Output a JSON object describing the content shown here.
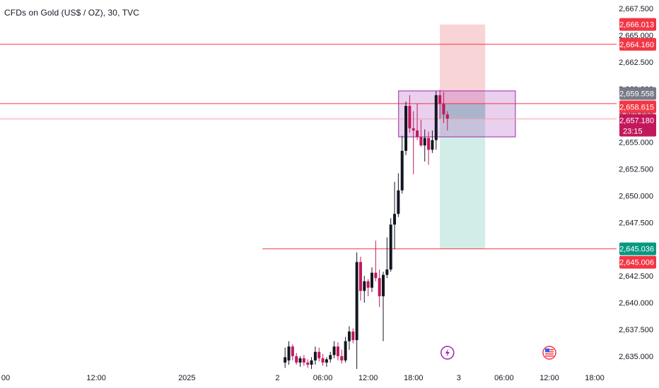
{
  "chart_data": {
    "type": "candlestick",
    "title": "CFDs on Gold (US$ / OZ), 30, TVC",
    "ylim": [
      2634.0,
      2668.3
    ],
    "y_ticks": [
      "2,635.000",
      "2,637.500",
      "2,640.000",
      "2,642.500",
      "2,645.000",
      "2,647.500",
      "2,650.000",
      "2,652.500",
      "2,655.000",
      "2,657.500",
      "2,660.000",
      "2,662.500",
      "2,665.000",
      "2,667.500"
    ],
    "y_tick_values": [
      2635.0,
      2637.5,
      2640.0,
      2642.5,
      2645.0,
      2647.5,
      2650.0,
      2652.5,
      2655.0,
      2657.5,
      2660.0,
      2662.5,
      2665.0,
      2667.5
    ],
    "x_ticks": [
      {
        "label": "00",
        "slot": 0
      },
      {
        "label": "12:00",
        "slot": 24
      },
      {
        "label": "2025",
        "slot": 48
      },
      {
        "label": "2",
        "slot": 72
      },
      {
        "label": "06:00",
        "slot": 84
      },
      {
        "label": "12:00",
        "slot": 96
      },
      {
        "label": "18:00",
        "slot": 108
      },
      {
        "label": "3",
        "slot": 120
      },
      {
        "label": "06:00",
        "slot": 132
      },
      {
        "label": "12:00",
        "slot": 144
      },
      {
        "label": "18:00",
        "slot": 156
      }
    ],
    "candles": [
      {
        "slot": 74,
        "o": 2634.4,
        "h": 2635.8,
        "l": 2633.9,
        "c": 2634.9
      },
      {
        "slot": 75,
        "o": 2634.6,
        "h": 2636.4,
        "l": 2634.2,
        "c": 2635.9
      },
      {
        "slot": 76,
        "o": 2635.9,
        "h": 2636.1,
        "l": 2634.6,
        "c": 2635.0
      },
      {
        "slot": 77,
        "o": 2635.0,
        "h": 2635.3,
        "l": 2634.2,
        "c": 2634.4
      },
      {
        "slot": 78,
        "o": 2634.4,
        "h": 2635.0,
        "l": 2634.0,
        "c": 2634.8
      },
      {
        "slot": 79,
        "o": 2634.8,
        "h": 2635.1,
        "l": 2634.1,
        "c": 2634.4
      },
      {
        "slot": 80,
        "o": 2634.4,
        "h": 2634.7,
        "l": 2633.9,
        "c": 2634.2
      },
      {
        "slot": 81,
        "o": 2634.2,
        "h": 2634.9,
        "l": 2633.8,
        "c": 2634.6
      },
      {
        "slot": 82,
        "o": 2634.6,
        "h": 2635.9,
        "l": 2634.2,
        "c": 2635.4
      },
      {
        "slot": 83,
        "o": 2635.4,
        "h": 2635.8,
        "l": 2634.5,
        "c": 2634.8
      },
      {
        "slot": 84,
        "o": 2634.8,
        "h": 2635.2,
        "l": 2634.1,
        "c": 2634.4
      },
      {
        "slot": 85,
        "o": 2634.4,
        "h": 2634.9,
        "l": 2634.0,
        "c": 2634.7
      },
      {
        "slot": 86,
        "o": 2634.7,
        "h": 2635.4,
        "l": 2634.4,
        "c": 2635.1
      },
      {
        "slot": 87,
        "o": 2635.1,
        "h": 2636.4,
        "l": 2634.8,
        "c": 2635.9
      },
      {
        "slot": 88,
        "o": 2635.9,
        "h": 2636.3,
        "l": 2634.6,
        "c": 2635.0
      },
      {
        "slot": 89,
        "o": 2635.0,
        "h": 2635.6,
        "l": 2634.3,
        "c": 2634.6
      },
      {
        "slot": 90,
        "o": 2634.6,
        "h": 2636.8,
        "l": 2634.4,
        "c": 2636.4
      },
      {
        "slot": 91,
        "o": 2636.4,
        "h": 2637.8,
        "l": 2635.6,
        "c": 2637.3
      },
      {
        "slot": 92,
        "o": 2637.3,
        "h": 2637.6,
        "l": 2636.2,
        "c": 2636.5
      },
      {
        "slot": 93,
        "o": 2636.5,
        "h": 2644.7,
        "l": 2633.8,
        "c": 2643.8
      },
      {
        "slot": 94,
        "o": 2643.8,
        "h": 2644.3,
        "l": 2640.2,
        "c": 2641.1
      },
      {
        "slot": 95,
        "o": 2641.1,
        "h": 2642.5,
        "l": 2640.0,
        "c": 2642.0
      },
      {
        "slot": 96,
        "o": 2642.0,
        "h": 2642.2,
        "l": 2640.6,
        "c": 2641.4
      },
      {
        "slot": 97,
        "o": 2641.4,
        "h": 2643.3,
        "l": 2641.0,
        "c": 2642.8
      },
      {
        "slot": 98,
        "o": 2642.8,
        "h": 2645.8,
        "l": 2642.0,
        "c": 2642.3
      },
      {
        "slot": 99,
        "o": 2642.3,
        "h": 2643.1,
        "l": 2639.6,
        "c": 2640.6
      },
      {
        "slot": 100,
        "o": 2640.6,
        "h": 2642.9,
        "l": 2636.4,
        "c": 2642.6
      },
      {
        "slot": 101,
        "o": 2642.6,
        "h": 2646.1,
        "l": 2642.3,
        "c": 2643.1
      },
      {
        "slot": 102,
        "o": 2643.1,
        "h": 2647.9,
        "l": 2642.9,
        "c": 2647.3
      },
      {
        "slot": 103,
        "o": 2647.3,
        "h": 2651.3,
        "l": 2645.0,
        "c": 2648.3
      },
      {
        "slot": 104,
        "o": 2648.3,
        "h": 2652.1,
        "l": 2648.0,
        "c": 2650.5
      },
      {
        "slot": 105,
        "o": 2650.5,
        "h": 2655.6,
        "l": 2650.2,
        "c": 2654.2
      },
      {
        "slot": 106,
        "o": 2654.2,
        "h": 2658.8,
        "l": 2653.8,
        "c": 2658.4
      },
      {
        "slot": 107,
        "o": 2658.4,
        "h": 2659.4,
        "l": 2655.9,
        "c": 2656.3
      },
      {
        "slot": 108,
        "o": 2656.3,
        "h": 2657.9,
        "l": 2652.0,
        "c": 2656.1
      },
      {
        "slot": 109,
        "o": 2656.1,
        "h": 2658.6,
        "l": 2655.2,
        "c": 2655.5
      },
      {
        "slot": 110,
        "o": 2655.5,
        "h": 2657.1,
        "l": 2654.6,
        "c": 2654.7
      },
      {
        "slot": 111,
        "o": 2654.7,
        "h": 2656.2,
        "l": 2653.2,
        "c": 2655.4
      },
      {
        "slot": 112,
        "o": 2655.4,
        "h": 2656.0,
        "l": 2652.9,
        "c": 2654.3
      },
      {
        "slot": 113,
        "o": 2654.3,
        "h": 2656.1,
        "l": 2654.0,
        "c": 2655.2
      },
      {
        "slot": 114,
        "o": 2655.2,
        "h": 2659.8,
        "l": 2654.3,
        "c": 2659.4
      },
      {
        "slot": 115,
        "o": 2659.4,
        "h": 2659.9,
        "l": 2657.2,
        "c": 2658.6
      },
      {
        "slot": 116,
        "o": 2658.6,
        "h": 2659.7,
        "l": 2656.8,
        "c": 2657.6
      },
      {
        "slot": 117,
        "o": 2657.6,
        "h": 2657.9,
        "l": 2656.1,
        "c": 2657.2
      }
    ],
    "horizontal_lines": [
      {
        "price": 2664.16,
        "color": "#f23645"
      },
      {
        "price": 2658.615,
        "color": "#f23645"
      },
      {
        "price": 2657.18,
        "color": "#f7a1ab"
      },
      {
        "price": 2645.036,
        "color": "#f23645",
        "start_slot": 68
      }
    ],
    "zone": {
      "top": 2659.8,
      "bottom": 2655.5,
      "start_slot": 105,
      "end_slot": 135,
      "color": "#9c27b0"
    },
    "position": {
      "entry": 2658.615,
      "stop": 2666.013,
      "target": 2645.036,
      "current": 2657.18,
      "start_slot": 115,
      "end_slot": 127
    },
    "price_labels": [
      {
        "price": 2666.013,
        "label": "2,666.013",
        "bg": "#f23645"
      },
      {
        "price": 2664.16,
        "label": "2,664.160",
        "bg": "#f23645"
      },
      {
        "price": 2659.558,
        "label": "2,659.558",
        "bg": "#787b86"
      },
      {
        "price": 2658.615,
        "label": "2,658.615",
        "bg": "#f23645"
      },
      {
        "price": 2657.18,
        "label": "2,657.180",
        "sublabel": "23:15",
        "bg": "#c2185b"
      },
      {
        "price": 2645.036,
        "label": "2,645.036",
        "bg": "#089981"
      },
      {
        "price": 2645.006,
        "label": "2,645.006",
        "bg": "#f23645"
      }
    ],
    "event_icons": [
      {
        "name": "lightning-icon",
        "slot": 117,
        "color": "#9c27b0"
      },
      {
        "name": "us-flag-icon",
        "slot": 144,
        "color": "#f23645"
      }
    ],
    "colors": {
      "up": "#131722",
      "down": "#c2185b",
      "risk": "#f7c9cd",
      "reward": "#cdebe6"
    }
  }
}
